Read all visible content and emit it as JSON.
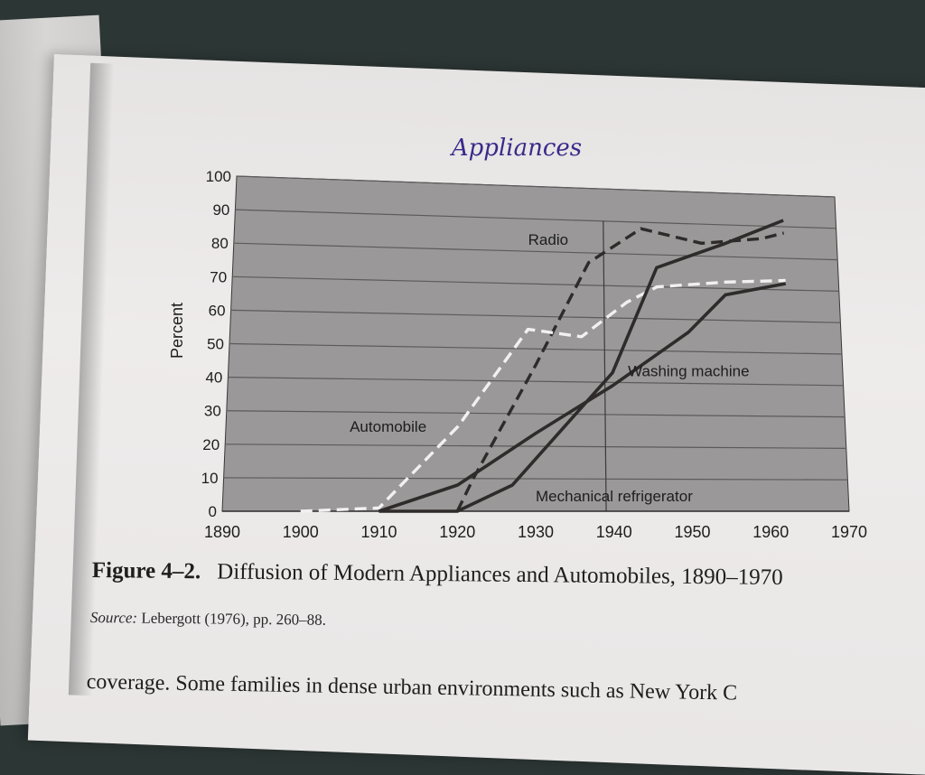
{
  "handwritten_note": "Appliances",
  "caption": {
    "figure_number": "Figure 4–2.",
    "title": "Diffusion of Modern Appliances and Automobiles, 1890–1970"
  },
  "source": {
    "label": "Source:",
    "text": "Lebergott (1976), pp. 260–88."
  },
  "body_text": "coverage. Some families in dense urban environments such as New York C",
  "colors": {
    "plot_background": "#9a9898",
    "gridline": "#5c5a5a",
    "dark_series": "#2f2b2b",
    "light_series": "#f2f0f0",
    "handwriting": "#3a2a8a"
  },
  "chart_data": {
    "type": "line",
    "ylabel": "Percent",
    "xlabel": "",
    "xlim": [
      1890,
      1970
    ],
    "ylim": [
      0,
      100
    ],
    "x_ticks": [
      1890,
      1900,
      1910,
      1920,
      1930,
      1940,
      1950,
      1960,
      1970
    ],
    "y_ticks": [
      0,
      10,
      20,
      30,
      40,
      50,
      60,
      70,
      80,
      90,
      100
    ],
    "grid": true,
    "reference_line_x": 1939,
    "series": [
      {
        "name": "Radio",
        "style": "dashed",
        "color": "#2f2b2b",
        "points": [
          [
            1920,
            0
          ],
          [
            1922,
            10
          ],
          [
            1930,
            45
          ],
          [
            1937,
            77
          ],
          [
            1944,
            88
          ],
          [
            1952,
            84
          ],
          [
            1960,
            86
          ],
          [
            1963,
            88
          ]
        ]
      },
      {
        "name": "Automobile",
        "style": "dashed",
        "color": "#f2f0f0",
        "points": [
          [
            1900,
            0
          ],
          [
            1910,
            1
          ],
          [
            1920,
            26
          ],
          [
            1929,
            56
          ],
          [
            1936,
            54
          ],
          [
            1942,
            65
          ],
          [
            1946,
            70
          ],
          [
            1955,
            72
          ],
          [
            1963,
            73
          ]
        ]
      },
      {
        "name": "Washing machine",
        "style": "solid",
        "color": "#2f2b2b",
        "points": [
          [
            1910,
            0
          ],
          [
            1920,
            8
          ],
          [
            1930,
            24
          ],
          [
            1940,
            39
          ],
          [
            1950,
            56
          ],
          [
            1955,
            68
          ],
          [
            1963,
            72
          ]
        ]
      },
      {
        "name": "Mechanical refrigerator",
        "style": "solid",
        "color": "#2f2b2b",
        "points": [
          [
            1910,
            0
          ],
          [
            1920,
            0
          ],
          [
            1927,
            8
          ],
          [
            1940,
            43
          ],
          [
            1946,
            76
          ],
          [
            1955,
            84
          ],
          [
            1963,
            92
          ]
        ]
      }
    ]
  }
}
